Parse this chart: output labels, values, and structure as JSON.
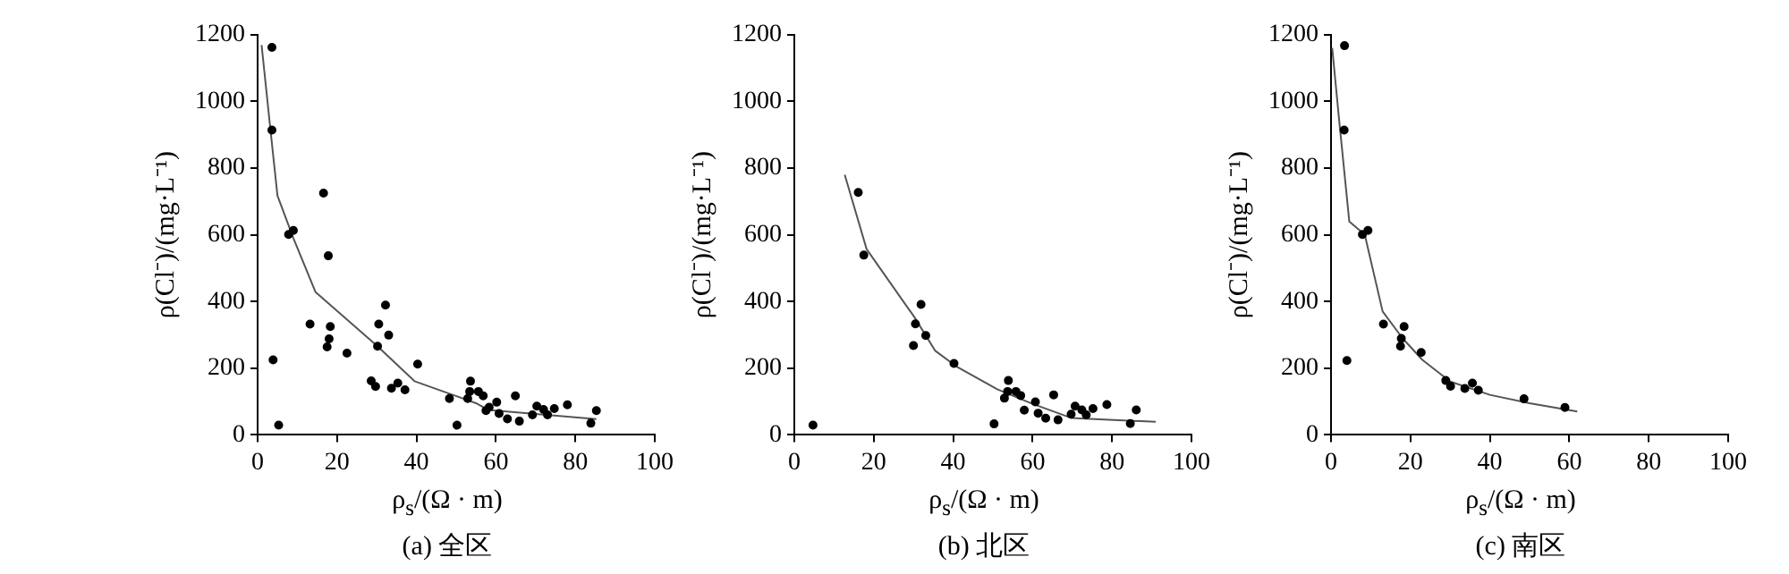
{
  "chart_data": [
    {
      "type": "scatter",
      "title": "(a) 全区",
      "xlabel": "ρ$_{s}$/(Ω · m)",
      "ylabel": "ρ(Cl⁻)/(mg·L⁻¹)",
      "xlim": [
        0,
        100
      ],
      "ylim": [
        0,
        1200
      ],
      "xticks": [
        0,
        20,
        40,
        60,
        80,
        100
      ],
      "yticks": [
        0,
        200,
        400,
        600,
        800,
        1000,
        1200
      ],
      "series": [
        {
          "marker": "circle",
          "color": "#000000",
          "x": [
            3.6,
            3.6,
            3.9,
            5.3,
            7.8,
            9.0,
            13.2,
            16.6,
            17.8,
            17.5,
            18,
            18.3,
            22.5,
            28.6,
            29.7,
            30.2,
            30.5,
            32.2,
            33,
            33.7,
            35.3,
            37.1,
            40.3,
            48.3,
            50.2,
            52.9,
            53.6,
            53.4,
            55.6,
            56.8,
            57.5,
            58.3,
            60.2,
            60.8,
            62.9,
            64.9,
            65.9,
            69.2,
            70.3,
            72,
            73,
            74.7,
            78,
            83.9,
            85.3
          ],
          "values": [
            1162,
            914,
            225,
            29,
            601,
            613,
            332,
            725,
            537,
            264,
            288,
            325,
            245,
            162,
            145,
            266,
            332,
            389,
            299,
            140,
            155,
            135,
            212,
            109,
            29,
            109,
            161,
            130,
            130,
            117,
            73,
            83,
            98,
            64,
            48,
            117,
            41,
            60,
            86,
            76,
            60,
            79,
            90,
            35,
            73
          ]
        },
        {
          "type": "line",
          "color": "#555555",
          "x": [
            1,
            3,
            5,
            9,
            14.6,
            30,
            39.5,
            55,
            58,
            85.3
          ],
          "values": [
            1169,
            941,
            717,
            590,
            428,
            268,
            161,
            95,
            75,
            47
          ]
        }
      ]
    },
    {
      "type": "scatter",
      "title": "(b) 北区",
      "xlabel": "ρ$_{s}$/(Ω · m)",
      "ylabel": "ρ(Cl⁻)/(mg·L⁻¹)",
      "xlim": [
        0,
        100
      ],
      "ylim": [
        0,
        1200
      ],
      "xticks": [
        0,
        20,
        40,
        60,
        80,
        100
      ],
      "yticks": [
        0,
        200,
        400,
        600,
        800,
        1000,
        1200
      ],
      "series": [
        {
          "marker": "circle",
          "color": "#000000",
          "x": [
            4.7,
            16.1,
            17.5,
            30,
            30.5,
            31.9,
            33.1,
            40.2,
            50.3,
            52.9,
            53.9,
            53.7,
            55.8,
            57,
            57.9,
            60.7,
            61.4,
            63.3,
            65.3,
            66.4,
            69.7,
            70.7,
            72.4,
            73.5,
            75.2,
            78.7,
            84.6,
            86.1
          ],
          "values": [
            29,
            727,
            539,
            268,
            333,
            391,
            298,
            214,
            33,
            110,
            163,
            130,
            130,
            118,
            74,
            99,
            65,
            50,
            120,
            45,
            62,
            86,
            75,
            60,
            79,
            91,
            34,
            75
          ]
        },
        {
          "type": "line",
          "color": "#555555",
          "x": [
            12.7,
            18.2,
            30.3,
            35.5,
            40.7,
            51.1,
            59.8,
            69.7,
            91
          ],
          "values": [
            780,
            557,
            352,
            252,
            206,
            137,
            94,
            51,
            39
          ]
        }
      ]
    },
    {
      "type": "scatter",
      "title": "(c) 南区",
      "xlabel": "ρ$_{s}$/(Ω · m)",
      "ylabel": "ρ(Cl⁻)/(mg·L⁻¹)",
      "xlim": [
        0,
        100
      ],
      "ylim": [
        0,
        1200
      ],
      "xticks": [
        0,
        20,
        40,
        60,
        80,
        100
      ],
      "yticks": [
        0,
        200,
        400,
        600,
        800,
        1000,
        1200
      ],
      "series": [
        {
          "marker": "circle",
          "color": "#000000",
          "x": [
            3.4,
            3.3,
            4.0,
            7.9,
            9.3,
            13.2,
            17.5,
            17.7,
            18.4,
            22.7,
            28.9,
            30.1,
            33.7,
            35.6,
            37.1,
            48.6,
            58.9
          ],
          "values": [
            1167,
            914,
            223,
            601,
            613,
            332,
            266,
            289,
            325,
            247,
            163,
            146,
            139,
            155,
            134,
            108,
            82
          ]
        },
        {
          "type": "line",
          "color": "#555555",
          "x": [
            0.3,
            2,
            4.6,
            8.5,
            13,
            18,
            23,
            30,
            40,
            50,
            62
          ],
          "values": [
            1160,
            950,
            640,
            600,
            370,
            290,
            225,
            160,
            120,
            95,
            70
          ]
        }
      ]
    }
  ]
}
